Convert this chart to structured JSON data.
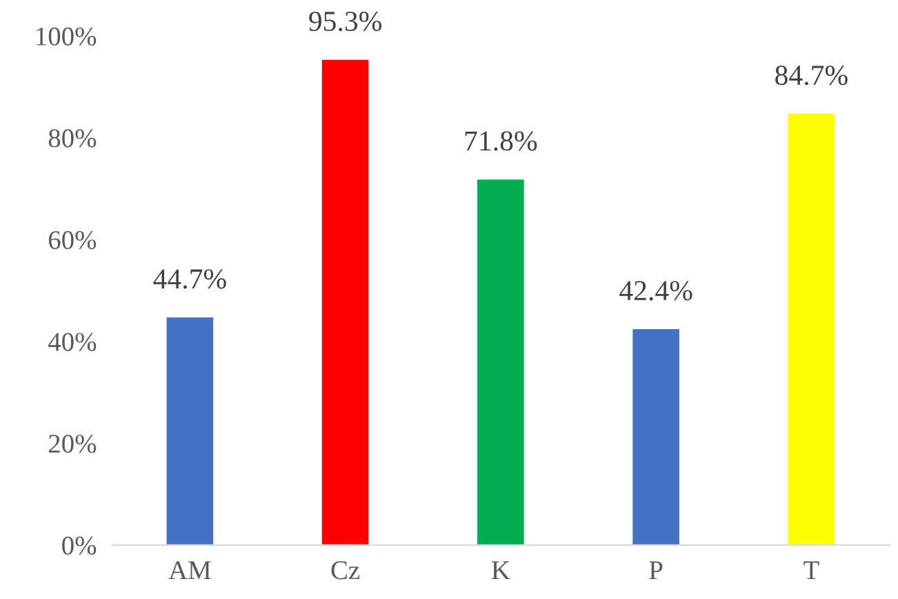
{
  "chart_data": {
    "type": "bar",
    "categories": [
      "AM",
      "Cz",
      "K",
      "P",
      "T"
    ],
    "values": [
      44.7,
      95.3,
      71.8,
      42.4,
      84.7
    ],
    "colors": [
      "#4472c4",
      "#ff0000",
      "#00b050",
      "#4472c4",
      "#ffff00"
    ],
    "value_labels": [
      "44.7%",
      "95.3%",
      "71.8%",
      "42.4%",
      "84.7%"
    ],
    "ylim": [
      0,
      100
    ],
    "yticks": [
      {
        "value": 0,
        "label": "0%"
      },
      {
        "value": 20,
        "label": "20%"
      },
      {
        "value": 40,
        "label": "40%"
      },
      {
        "value": 60,
        "label": "60%"
      },
      {
        "value": 80,
        "label": "80%"
      },
      {
        "value": 100,
        "label": "100%"
      }
    ],
    "grid": false,
    "legend": false
  }
}
